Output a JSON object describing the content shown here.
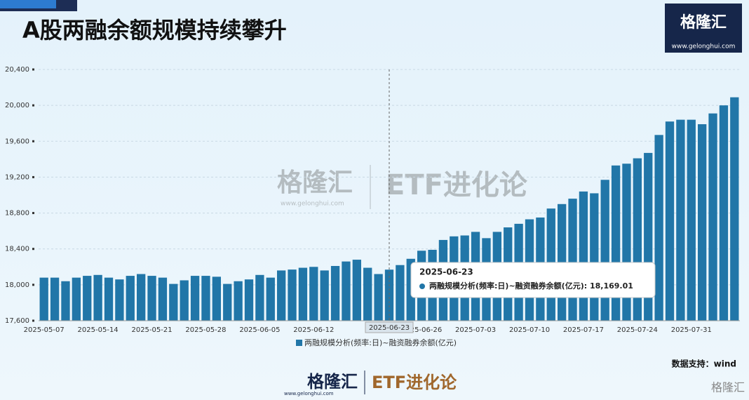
{
  "header": {
    "title": "A股两融余额规模持续攀升",
    "logo": "格隆汇",
    "logo_url": "www.gelonghui.com"
  },
  "watermark": {
    "logo": "格隆汇",
    "url": "www.gelonghui.com",
    "brand": "ETF进化论"
  },
  "footer": {
    "source": "数据支持：wind",
    "logo": "格隆汇",
    "url": "www.gelonghui.com",
    "brand": "ETF进化论",
    "corner": "格隆汇"
  },
  "chart_data": {
    "type": "bar",
    "categories": [
      "2025-05-07",
      null,
      null,
      null,
      null,
      "2025-05-14",
      null,
      null,
      null,
      null,
      "2025-05-21",
      null,
      null,
      null,
      null,
      "2025-05-28",
      null,
      null,
      null,
      null,
      "2025-06-05",
      null,
      null,
      null,
      null,
      "2025-06-12",
      null,
      null,
      null,
      null,
      null,
      null,
      "2025-06-23",
      null,
      null,
      "2025-06-26",
      null,
      null,
      null,
      null,
      "2025-07-03",
      null,
      null,
      null,
      null,
      "2025-07-10",
      null,
      null,
      null,
      null,
      "2025-07-17",
      null,
      null,
      null,
      null,
      "2025-07-24",
      null,
      null,
      null,
      null,
      "2025-07-31",
      null,
      null,
      null,
      null
    ],
    "series": [
      {
        "name": "两融规模分析(频率:日)~融资融券余额(亿元)",
        "color": "#2176a8",
        "values": [
          18080,
          18080,
          18040,
          18080,
          18100,
          18110,
          18080,
          18060,
          18100,
          18120,
          18100,
          18080,
          18010,
          18050,
          18100,
          18100,
          18090,
          18010,
          18040,
          18060,
          18110,
          18080,
          18160,
          18170,
          18190,
          18200,
          18160,
          18210,
          18260,
          18280,
          18190,
          18120,
          18169.01,
          18220,
          18290,
          18380,
          18390,
          18500,
          18540,
          18550,
          18590,
          18520,
          18590,
          18640,
          18680,
          18730,
          18750,
          18850,
          18900,
          18960,
          19040,
          19020,
          19170,
          19330,
          19350,
          19410,
          19470,
          19670,
          19820,
          19840,
          19840,
          19790,
          19910,
          20000,
          20090
        ]
      }
    ],
    "tooltip": {
      "index": 32,
      "text": "两融规模分析(频率:日)~融资融券余额(亿元): 18,169.01"
    },
    "ylim": [
      17600,
      20400
    ],
    "yticks": [
      {
        "value": 17600,
        "label": "17,600"
      },
      {
        "value": 18000,
        "label": "18,000"
      },
      {
        "value": 18400,
        "label": "18,400"
      },
      {
        "value": 18800,
        "label": "18,800"
      },
      {
        "value": 19200,
        "label": "19,200"
      },
      {
        "value": 19600,
        "label": "19,600"
      },
      {
        "value": 20000,
        "label": "20,000"
      },
      {
        "value": 20400,
        "label": "20,400"
      }
    ],
    "grid": true,
    "legend": "bottom"
  }
}
